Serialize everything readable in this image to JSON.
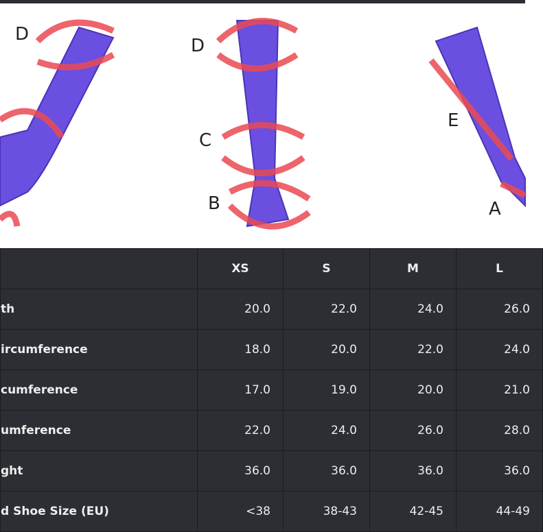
{
  "figures": {
    "labels": [
      "D",
      "D",
      "C",
      "B",
      "E",
      "A"
    ]
  },
  "table": {
    "columns": [
      "XS",
      "S",
      "M",
      "L"
    ],
    "rows": [
      {
        "label": "th",
        "cells": [
          "20.0",
          "22.0",
          "24.0",
          "26.0"
        ]
      },
      {
        "label": "ircumference",
        "cells": [
          "18.0",
          "20.0",
          "22.0",
          "24.0"
        ]
      },
      {
        "label": "cumference",
        "cells": [
          "17.0",
          "19.0",
          "20.0",
          "21.0"
        ]
      },
      {
        "label": "umference",
        "cells": [
          "22.0",
          "24.0",
          "26.0",
          "28.0"
        ]
      },
      {
        "label": "ght",
        "cells": [
          "36.0",
          "36.0",
          "36.0",
          "36.0"
        ]
      },
      {
        "label": "d Shoe Size (EU)",
        "cells": [
          "<38",
          "38-43",
          "42-45",
          "44-49"
        ]
      }
    ]
  }
}
